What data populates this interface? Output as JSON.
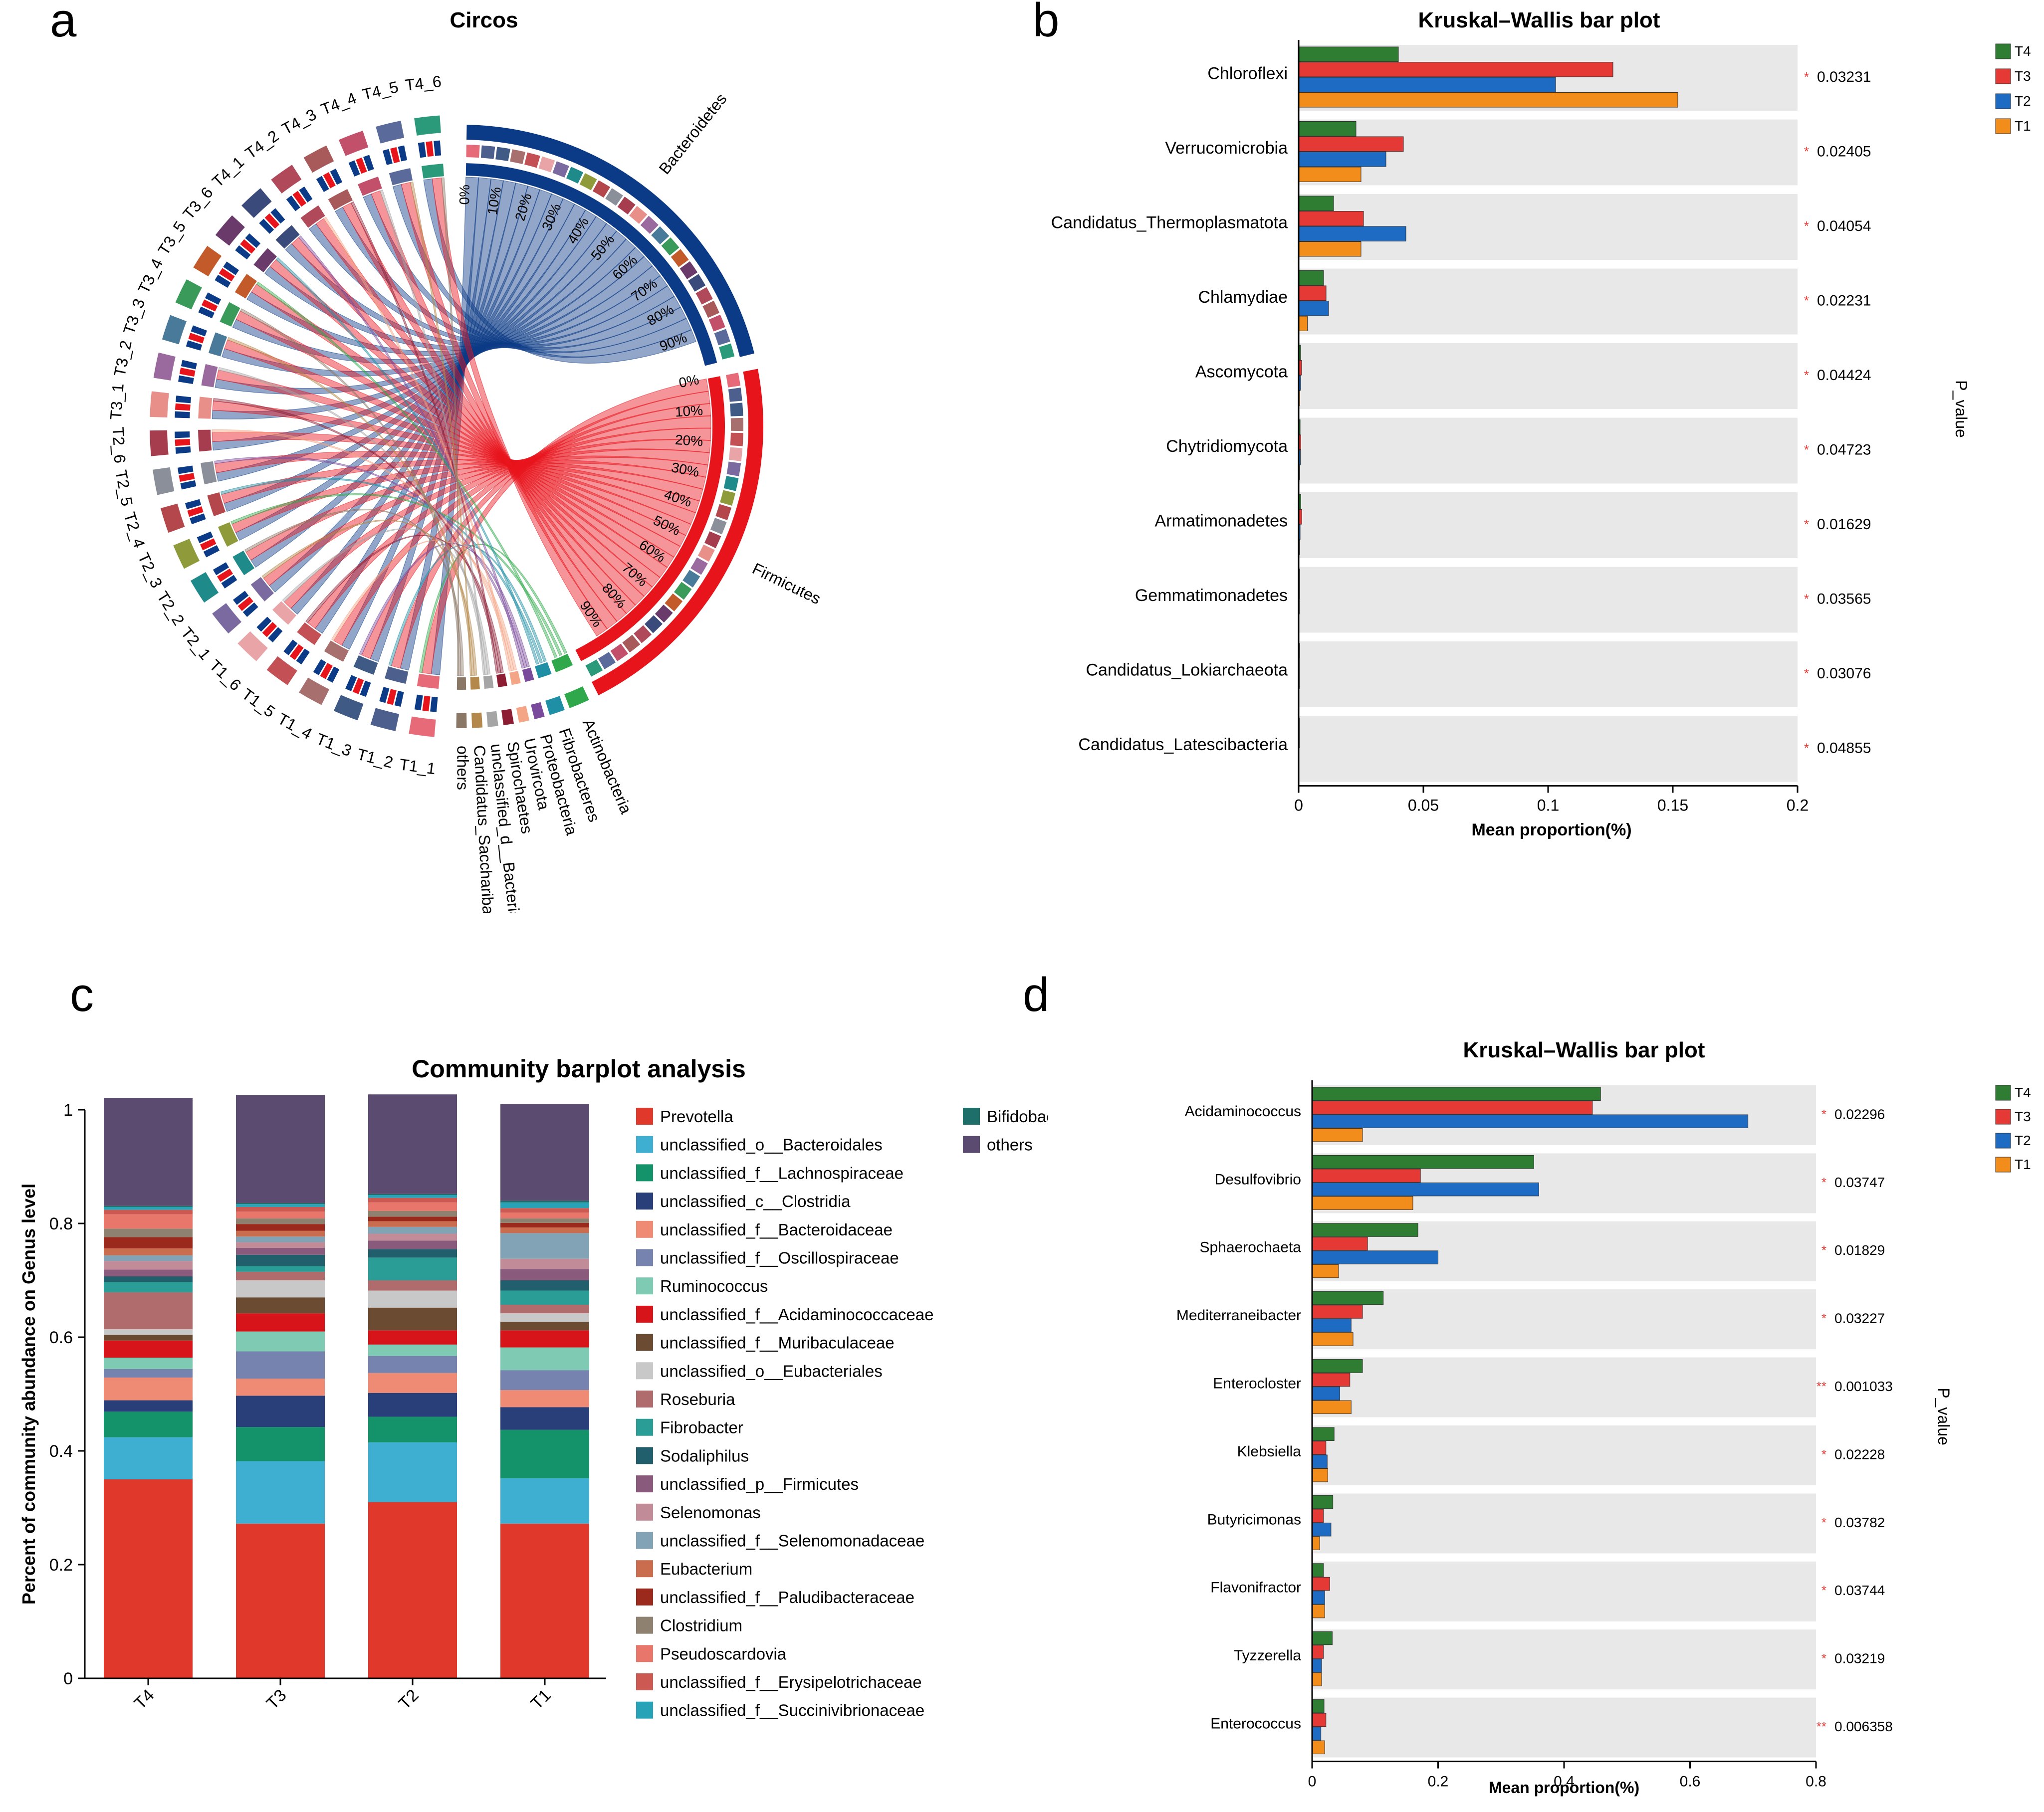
{
  "panels": {
    "a": {
      "letter": "a",
      "chart_data": {
        "type": "chord",
        "title": "Circos",
        "percent_ticks": [
          "0%",
          "10%",
          "20%",
          "30%",
          "40%",
          "50%",
          "60%",
          "70%",
          "80%",
          "90%"
        ],
        "samples": [
          "T1_1",
          "T1_2",
          "T1_3",
          "T1_4",
          "T1_5",
          "T1_6",
          "T2_1",
          "T2_2",
          "T2_3",
          "T2_4",
          "T2_5",
          "T2_6",
          "T3_1",
          "T3_2",
          "T3_3",
          "T3_4",
          "T3_5",
          "T3_6",
          "T4_1",
          "T4_2",
          "T4_3",
          "T4_4",
          "T4_5",
          "T4_6"
        ],
        "phyla": [
          {
            "name": "Bacteroidetes",
            "color": "#0b3a86"
          },
          {
            "name": "Firmicutes",
            "color": "#e8141c"
          },
          {
            "name": "Actinobacteria",
            "color": "#2ea84a"
          },
          {
            "name": "Fibrobacteres",
            "color": "#1f8fa5"
          },
          {
            "name": "Proteobacteria",
            "color": "#7a4b9c"
          },
          {
            "name": "Urovircota",
            "color": "#f4a585"
          },
          {
            "name": "Spirochaetes",
            "color": "#8c1d33"
          },
          {
            "name": "unclassified_d__Bacteria",
            "color": "#a5a5a5"
          },
          {
            "name": "Candidatus_Saccharibacteria",
            "color": "#b4884a"
          },
          {
            "name": "others",
            "color": "#8a7766"
          }
        ]
      }
    },
    "b": {
      "letter": "b",
      "chart_data": {
        "type": "bar",
        "orientation": "horizontal",
        "title": "Kruskal–Wallis bar plot",
        "xlabel": "Mean proportion(%)",
        "ylabel_right": "P_value",
        "xlim": [
          0,
          0.2
        ],
        "xticks": [
          "0",
          "0.05",
          "0.1",
          "0.15",
          "0.2"
        ],
        "xtick_values": [
          0,
          0.05,
          0.1,
          0.15,
          0.2
        ],
        "legend": [
          "T4",
          "T3",
          "T2",
          "T1"
        ],
        "legend_position": "top-right",
        "colors": {
          "T4": "#2e7d32",
          "T3": "#e53935",
          "T2": "#1e6bc4",
          "T1": "#f28c1b"
        },
        "categories": [
          "Chloroflexi",
          "Verrucomicrobia",
          "Candidatus_Thermoplasmatota",
          "Chlamydiae",
          "Ascomycota",
          "Chytridiomycota",
          "Armatimonadetes",
          "Gemmatimonadetes",
          "Candidatus_Lokiarchaeota",
          "Candidatus_Latescibacteria"
        ],
        "series": [
          {
            "name": "T4",
            "values": [
              0.04,
              0.023,
              0.014,
              0.01,
              0.0008,
              0.0006,
              0.0009,
              0.0004,
              0.0004,
              0.0003
            ]
          },
          {
            "name": "T3",
            "values": [
              0.126,
              0.042,
              0.026,
              0.011,
              0.0012,
              0.0009,
              0.0013,
              0.0004,
              0.0003,
              0.0003
            ]
          },
          {
            "name": "T2",
            "values": [
              0.103,
              0.035,
              0.043,
              0.012,
              0.0008,
              0.0007,
              0.0006,
              0.0003,
              0.0003,
              0.0002
            ]
          },
          {
            "name": "T1",
            "values": [
              0.152,
              0.025,
              0.025,
              0.0035,
              0.0005,
              0.0004,
              0.0004,
              0.0002,
              0.0002,
              0.0002
            ]
          }
        ],
        "significance": [
          "*",
          "*",
          "*",
          "*",
          "*",
          "*",
          "*",
          "*",
          "*",
          "*"
        ],
        "p_values": [
          "0.03231",
          "0.02405",
          "0.04054",
          "0.02231",
          "0.04424",
          "0.04723",
          "0.01629",
          "0.03565",
          "0.03076",
          "0.04855"
        ]
      }
    },
    "c": {
      "letter": "c",
      "chart_data": {
        "type": "bar",
        "stacked": true,
        "title": "Community barplot analysis",
        "ylabel": "Percent of community abundance on Genus level",
        "ylim": [
          0,
          1
        ],
        "yticks": [
          "0",
          "0.2",
          "0.4",
          "0.6",
          "0.8",
          "1"
        ],
        "ytick_values": [
          0,
          0.2,
          0.4,
          0.6,
          0.8,
          1
        ],
        "categories": [
          "T4",
          "T3",
          "T2",
          "T1"
        ],
        "series": [
          {
            "name": "Prevotella",
            "color": "#e0392b",
            "values": [
              0.35,
              0.272,
              0.31,
              0.272
            ]
          },
          {
            "name": "unclassified_o__Bacteroidales",
            "color": "#3eaed1",
            "values": [
              0.074,
              0.11,
              0.105,
              0.08
            ]
          },
          {
            "name": "unclassified_f__Lachnospiraceae",
            "color": "#14936b",
            "values": [
              0.045,
              0.06,
              0.045,
              0.085
            ]
          },
          {
            "name": "unclassified_c__Clostridia",
            "color": "#283f7a",
            "values": [
              0.02,
              0.055,
              0.042,
              0.04
            ]
          },
          {
            "name": "unclassified_f__Bacteroidaceae",
            "color": "#ef8a74",
            "values": [
              0.04,
              0.03,
              0.035,
              0.03
            ]
          },
          {
            "name": "unclassified_f__Oscillospiraceae",
            "color": "#7683ae",
            "values": [
              0.015,
              0.048,
              0.03,
              0.035
            ]
          },
          {
            "name": "Ruminococcus",
            "color": "#7fcab3",
            "values": [
              0.02,
              0.035,
              0.02,
              0.04
            ]
          },
          {
            "name": "unclassified_f__Acidaminococcaceae",
            "color": "#d7141a",
            "values": [
              0.03,
              0.032,
              0.025,
              0.03
            ]
          },
          {
            "name": "unclassified_f__Muribaculaceae",
            "color": "#6b4c32",
            "values": [
              0.01,
              0.028,
              0.04,
              0.015
            ]
          },
          {
            "name": "unclassified_o__Eubacteriales",
            "color": "#c8c8c8",
            "values": [
              0.01,
              0.03,
              0.03,
              0.015
            ]
          },
          {
            "name": "Roseburia",
            "color": "#b06c6c",
            "values": [
              0.065,
              0.015,
              0.018,
              0.015
            ]
          },
          {
            "name": "Fibrobacter",
            "color": "#2a9e96",
            "values": [
              0.018,
              0.01,
              0.04,
              0.025
            ]
          },
          {
            "name": "Sodaliphilus",
            "color": "#215f6d",
            "values": [
              0.01,
              0.02,
              0.015,
              0.018
            ]
          },
          {
            "name": "unclassified_p__Firmicutes",
            "color": "#8a5a7c",
            "values": [
              0.012,
              0.012,
              0.015,
              0.02
            ]
          },
          {
            "name": "Selenomonas",
            "color": "#c28b98",
            "values": [
              0.015,
              0.01,
              0.012,
              0.018
            ]
          },
          {
            "name": "unclassified_f__Selenomonadaceae",
            "color": "#82a2b6",
            "values": [
              0.01,
              0.01,
              0.012,
              0.045
            ]
          },
          {
            "name": "Eubacterium",
            "color": "#c96d4e",
            "values": [
              0.012,
              0.01,
              0.01,
              0.01
            ]
          },
          {
            "name": "unclassified_f__Paludibacteraceae",
            "color": "#9c2a1c",
            "values": [
              0.02,
              0.012,
              0.008,
              0.008
            ]
          },
          {
            "name": "Clostridium",
            "color": "#8f8170",
            "values": [
              0.015,
              0.01,
              0.01,
              0.008
            ]
          },
          {
            "name": "Pseudoscardovia",
            "color": "#e8766a",
            "values": [
              0.025,
              0.012,
              0.015,
              0.01
            ]
          },
          {
            "name": "unclassified_f__Erysipelotrichaceae",
            "color": "#cc5a52",
            "values": [
              0.008,
              0.008,
              0.008,
              0.008
            ]
          },
          {
            "name": "unclassified_f__Succinivibrionaceae",
            "color": "#27a2b6",
            "values": [
              0.005,
              0.005,
              0.005,
              0.01
            ]
          },
          {
            "name": "Bifidobacterium",
            "color": "#1e6f6a",
            "values": [
              0.002,
              0.002,
              0.002,
              0.003
            ]
          },
          {
            "name": "others",
            "color": "#5b4b70",
            "values": [
              0.19,
              0.19,
              0.175,
              0.17
            ]
          }
        ]
      }
    },
    "d": {
      "letter": "d",
      "chart_data": {
        "type": "bar",
        "orientation": "horizontal",
        "title": "Kruskal–Wallis bar plot",
        "xlabel": "Mean proportion(%)",
        "ylabel_right": "P_value",
        "xlim": [
          0,
          0.8
        ],
        "xticks": [
          "0",
          "0.2",
          "0.4",
          "0.6",
          "0.8"
        ],
        "xtick_values": [
          0,
          0.2,
          0.4,
          0.6,
          0.8
        ],
        "legend": [
          "T4",
          "T3",
          "T2",
          "T1"
        ],
        "legend_position": "top-right",
        "colors": {
          "T4": "#2e7d32",
          "T3": "#e53935",
          "T2": "#1e6bc4",
          "T1": "#f28c1b"
        },
        "categories": [
          "Acidaminococcus",
          "Desulfovibrio",
          "Sphaerochaeta",
          "Mediterraneibacter",
          "Enterocloster",
          "Klebsiella",
          "Butyricimonas",
          "Flavonifractor",
          "Tyzzerella",
          "Enterococcus"
        ],
        "series": [
          {
            "name": "T4",
            "values": [
              0.458,
              0.352,
              0.168,
              0.113,
              0.08,
              0.035,
              0.033,
              0.018,
              0.032,
              0.019
            ]
          },
          {
            "name": "T3",
            "values": [
              0.445,
              0.172,
              0.088,
              0.08,
              0.06,
              0.022,
              0.018,
              0.028,
              0.018,
              0.022
            ]
          },
          {
            "name": "T2",
            "values": [
              0.692,
              0.36,
              0.2,
              0.062,
              0.044,
              0.024,
              0.03,
              0.02,
              0.015,
              0.014
            ]
          },
          {
            "name": "T1",
            "values": [
              0.08,
              0.16,
              0.042,
              0.065,
              0.062,
              0.025,
              0.012,
              0.02,
              0.015,
              0.02
            ]
          }
        ],
        "significance": [
          "*",
          "*",
          "*",
          "*",
          "**",
          "*",
          "*",
          "*",
          "*",
          "**"
        ],
        "p_values": [
          "0.02296",
          "0.03747",
          "0.01829",
          "0.03227",
          "0.001033",
          "0.02228",
          "0.03782",
          "0.03744",
          "0.03219",
          "0.006358"
        ]
      }
    }
  }
}
